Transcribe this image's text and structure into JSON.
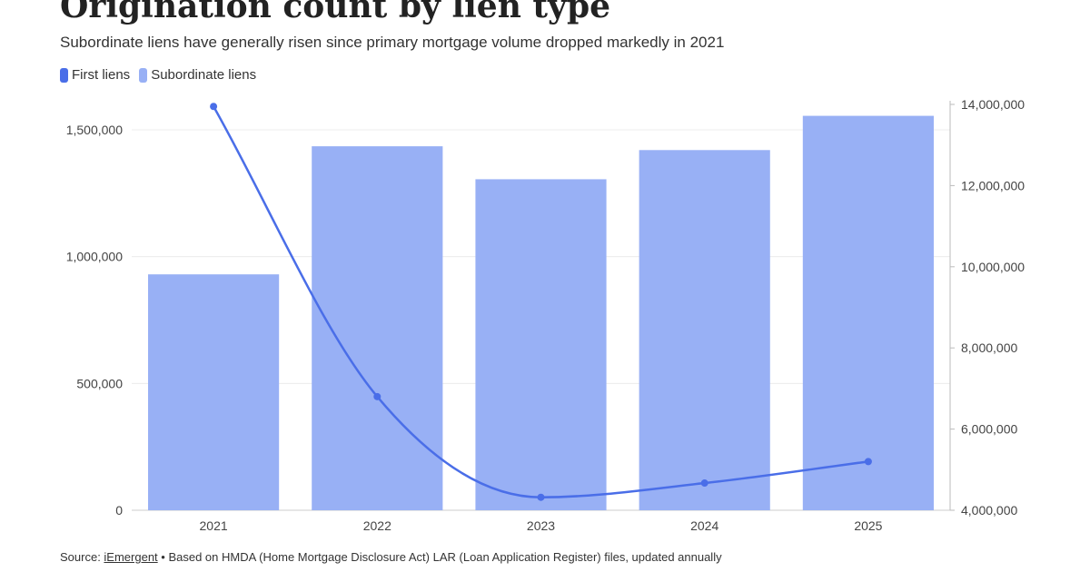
{
  "header": {
    "title": "Origination count by lien type",
    "subtitle": "Subordinate liens have generally risen since primary mortgage volume dropped markedly in 2021"
  },
  "legend": {
    "items": [
      {
        "label": "First liens",
        "color": "#4a6ee8"
      },
      {
        "label": "Subordinate liens",
        "color": "#98b0f5"
      }
    ]
  },
  "footer": {
    "source_prefix": "Source: ",
    "source_link": "iEmergent",
    "source_rest": " • Based on HMDA (Home Mortgage Disclosure Act) LAR (Loan Application Register) files, updated annually"
  },
  "chart_data": {
    "type": "bar",
    "categories": [
      "2021",
      "2022",
      "2023",
      "2024",
      "2025"
    ],
    "series": [
      {
        "name": "Subordinate liens",
        "type": "bar",
        "axis": "left",
        "color": "#98b0f5",
        "values": [
          930000,
          1435000,
          1305000,
          1420000,
          1555000
        ]
      },
      {
        "name": "First liens",
        "type": "line",
        "axis": "right",
        "color": "#4a6ee8",
        "values": [
          13950000,
          6800000,
          4320000,
          4670000,
          5200000
        ]
      }
    ],
    "y_left": {
      "min": 0,
      "max": 1600000,
      "ticks": [
        0,
        500000,
        1000000,
        1500000
      ],
      "tick_labels": [
        "0",
        "500,000",
        "1,000,000",
        "1,500,000"
      ]
    },
    "y_right": {
      "min": 4000000,
      "max": 14000000,
      "ticks": [
        4000000,
        6000000,
        8000000,
        10000000,
        12000000,
        14000000
      ],
      "tick_labels": [
        "4,000,000",
        "6,000,000",
        "8,000,000",
        "10,000,000",
        "12,000,000",
        "14,000,000"
      ]
    },
    "grid": true
  }
}
